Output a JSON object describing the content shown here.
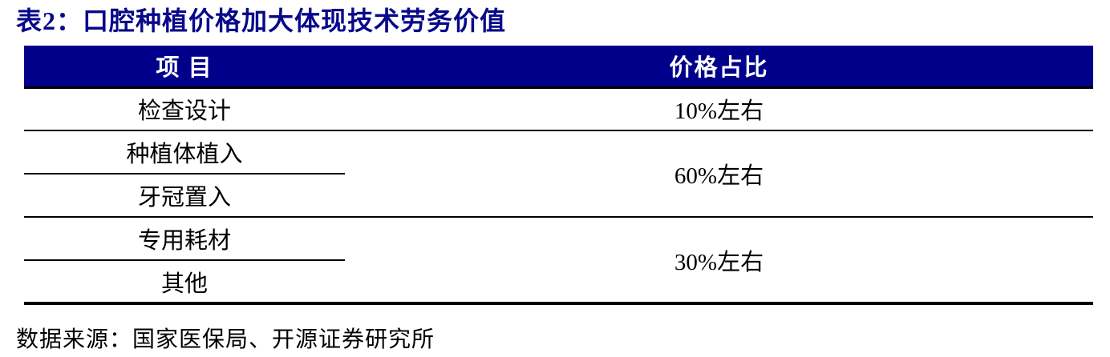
{
  "title": {
    "text": "表2：口腔种植价格加大体现技术劳务价值"
  },
  "table": {
    "headers": [
      "项 目",
      "价格占比"
    ],
    "groups": [
      {
        "items": [
          "检查设计"
        ],
        "price_share": "10%左右"
      },
      {
        "items": [
          "种植体植入",
          "牙冠置入"
        ],
        "price_share": "60%左右"
      },
      {
        "items": [
          "专用耗材",
          "其他"
        ],
        "price_share": "30%左右"
      }
    ]
  },
  "footer": {
    "source": "数据来源：国家医保局、开源证券研究所"
  },
  "colors": {
    "header_bg": "#00008B",
    "title_color": "#08088A",
    "border_color": "#000000",
    "text_color": "#000000",
    "page_bg": "#FFFFFF"
  }
}
